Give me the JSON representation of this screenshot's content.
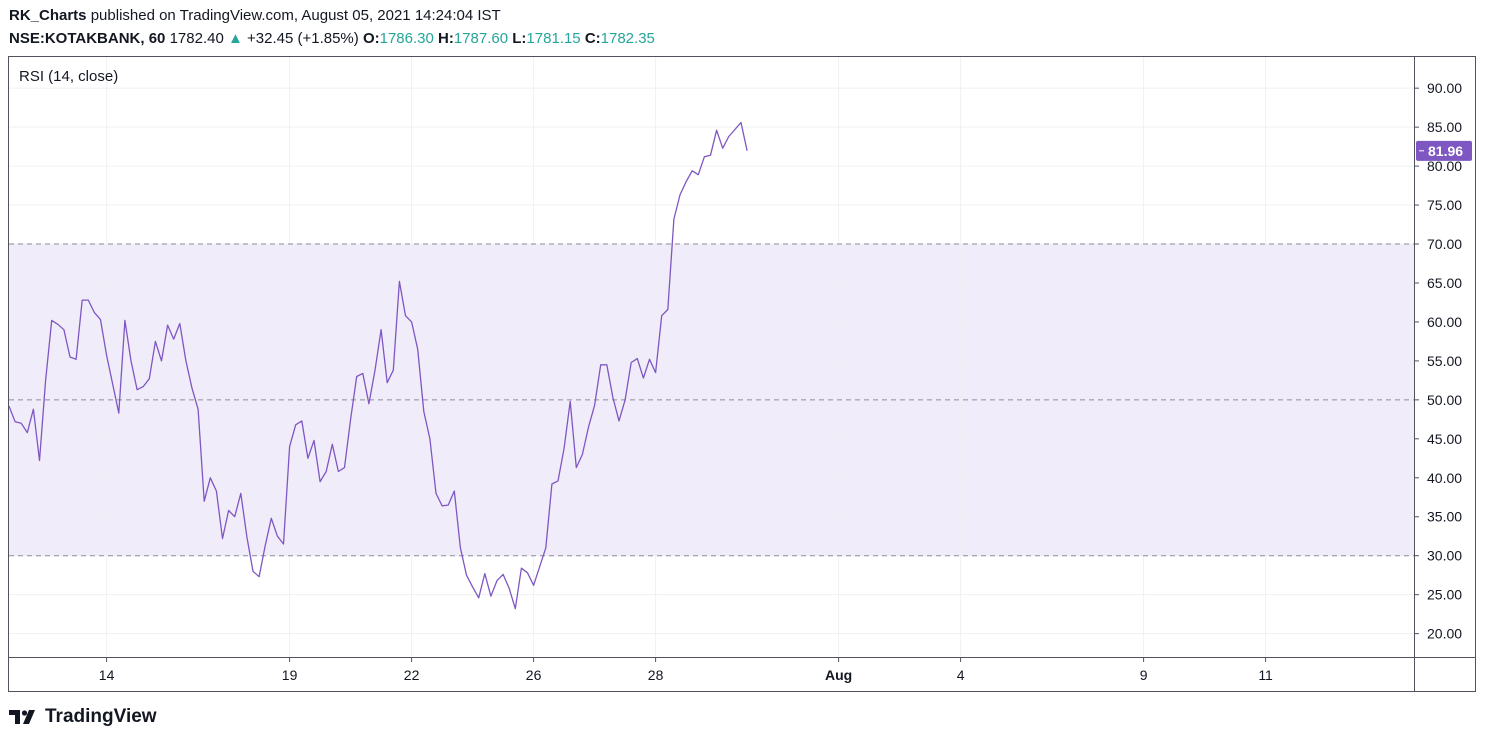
{
  "header": {
    "publisher": "RK_Charts",
    "published_text": "published on TradingView.com, August 05, 2021 14:24:04 IST",
    "symbol": "NSE:KOTAKBANK, 60",
    "last": "1782.40",
    "change": "+32.45 (+1.85%)",
    "open_label": "O:",
    "open_value": "1786.30",
    "high_label": "H:",
    "high_value": "1787.60",
    "low_label": "L:",
    "low_value": "1781.15",
    "close_label": "C:",
    "close_value": "1782.35"
  },
  "pane": {
    "label": "RSI (14, close)"
  },
  "footer": {
    "brand": "TradingView"
  },
  "colors": {
    "rsi_line": "#7e57c2",
    "band_fill": "#f1ecfa",
    "up": "#26a69a"
  },
  "chart_data": {
    "type": "line",
    "title": "RSI (14, close)",
    "ylim": [
      17,
      94
    ],
    "y_ticks": [
      "90.00",
      "85.00",
      "80.00",
      "75.00",
      "70.00",
      "65.00",
      "60.00",
      "55.00",
      "50.00",
      "45.00",
      "40.00",
      "35.00",
      "30.00",
      "25.00",
      "20.00"
    ],
    "x_ticks": [
      {
        "label": "14",
        "index": 16
      },
      {
        "label": "19",
        "index": 46
      },
      {
        "label": "22",
        "index": 66
      },
      {
        "label": "26",
        "index": 86
      },
      {
        "label": "28",
        "index": 106
      },
      {
        "label": "Aug",
        "index": 136
      },
      {
        "label": "4",
        "index": 156
      },
      {
        "label": "9",
        "index": 186
      },
      {
        "label": "11",
        "index": 206
      }
    ],
    "x_count": 230,
    "bands": {
      "upper": 70,
      "middle": 50,
      "lower": 30
    },
    "last_value": "81.96",
    "series": [
      {
        "values": [
          49.2,
          47.2,
          47.0,
          45.8,
          48.8,
          42.2,
          52.5,
          60.2,
          59.7,
          59.0,
          55.5,
          55.2,
          62.8,
          62.8,
          61.2,
          60.3,
          55.7,
          52.0,
          48.3,
          60.2,
          55.0,
          51.3,
          51.7,
          52.7,
          57.5,
          55.0,
          59.6,
          57.8,
          59.8,
          55.0,
          51.5,
          48.8,
          37.0,
          40.0,
          38.3,
          32.2,
          35.8,
          35.0,
          38.0,
          32.4,
          28.0,
          27.3,
          31.3,
          34.8,
          32.5,
          31.5,
          44.0,
          46.8,
          47.3,
          42.5,
          44.8,
          39.5,
          40.8,
          44.3,
          40.8,
          41.3,
          47.5,
          53.0,
          53.4,
          49.5,
          53.8,
          59.0,
          52.2,
          53.8,
          65.2,
          60.8,
          60.0,
          56.5,
          48.5,
          45.0,
          38.0,
          36.4,
          36.5,
          38.3,
          31.0,
          27.5,
          26.0,
          24.6,
          27.7,
          24.8,
          26.8,
          27.6,
          25.8,
          23.2,
          28.4,
          27.8,
          26.2,
          28.6,
          31.0,
          39.2,
          39.6,
          43.8,
          49.8,
          41.3,
          43.0,
          46.5,
          49.3,
          54.5,
          54.5,
          50.3,
          47.3,
          50.0,
          54.8,
          55.3,
          52.8,
          55.2,
          53.5,
          60.8,
          61.6,
          73.2,
          76.3,
          78.0,
          79.4,
          78.9,
          81.2,
          81.4,
          84.6,
          82.3,
          83.8,
          84.7,
          85.6,
          81.96
        ]
      }
    ]
  }
}
